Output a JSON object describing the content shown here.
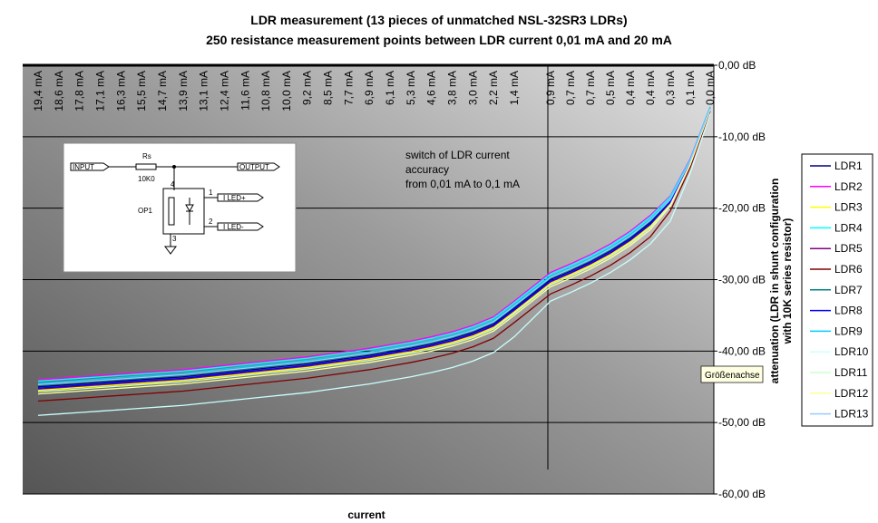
{
  "chart_data": {
    "type": "line",
    "title": "LDR measurement (13 pieces of unmatched NSL-32SR3 LDRs)",
    "subtitle": "250 resistance measurement points between LDR current 0,01 mA and 20 mA",
    "xlabel": "current",
    "ylabel": [
      "attenuation (LDR in shunt configuration",
      "with 10K series resistor)"
    ],
    "annotation": [
      "switch of LDR current",
      "accuracy",
      "from 0,01 mA to 0,1 mA"
    ],
    "tooltip": "Größenachse",
    "inset_labels": {
      "input": "INPUT",
      "rs": "Rs",
      "r_value": "10K0",
      "output": "OUTPUT",
      "pin4": "4",
      "pin1": "1",
      "led_plus": "I LED+",
      "part": "OP1",
      "pin2": "2",
      "led_minus": "I LED-",
      "pin3": "3"
    },
    "categories": [
      "19,4 mA",
      "18,6 mA",
      "17,8 mA",
      "17,1 mA",
      "16,3 mA",
      "15,5 mA",
      "14,7 mA",
      "13,9 mA",
      "13,1 mA",
      "12,4 mA",
      "11,6 mA",
      "10,8 mA",
      "10,0 mA",
      "9,2 mA",
      "8,5 mA",
      "7,7 mA",
      "6,9 mA",
      "6,1 mA",
      "5,3 mA",
      "4,6 mA",
      "3,8 mA",
      "3,0 mA",
      "2,2 mA",
      "1,4 mA",
      "0,9 mA",
      "0,7 mA",
      "0,7 mA",
      "0,5 mA",
      "0,4 mA",
      "0,4 mA",
      "0,3 mA",
      "0,1 mA",
      "0,0 mA"
    ],
    "ylim": [
      -60,
      0
    ],
    "yticks": [
      {
        "value": 0,
        "label": "0,00 dB"
      },
      {
        "value": -10,
        "label": "-10,00 dB"
      },
      {
        "value": -20,
        "label": "-20,00 dB"
      },
      {
        "value": -30,
        "label": "-30,00 dB"
      },
      {
        "value": -40,
        "label": "-40,00 dB"
      },
      {
        "value": -50,
        "label": "-50,00 dB"
      },
      {
        "value": -60,
        "label": "-60,00 dB"
      }
    ],
    "y_axis_side": "right",
    "grid": true,
    "legend": "right",
    "series": [
      {
        "name": "LDR1",
        "color": "#000080",
        "values": [
          -45.0,
          -44.8,
          -44.6,
          -44.4,
          -44.2,
          -44.0,
          -43.8,
          -43.6,
          -43.3,
          -43.0,
          -42.7,
          -42.4,
          -42.1,
          -41.8,
          -41.4,
          -41.0,
          -40.6,
          -40.1,
          -39.6,
          -39.0,
          -38.3,
          -37.4,
          -36.2,
          -34.0,
          -30.0,
          -28.8,
          -27.5,
          -26.0,
          -24.2,
          -22.0,
          -19.0,
          -13.5,
          -6.0
        ]
      },
      {
        "name": "LDR2",
        "color": "#ff00ff",
        "values": [
          -44.0,
          -43.8,
          -43.6,
          -43.4,
          -43.2,
          -43.0,
          -42.8,
          -42.6,
          -42.3,
          -42.0,
          -41.7,
          -41.4,
          -41.1,
          -40.8,
          -40.4,
          -40.0,
          -39.6,
          -39.1,
          -38.6,
          -38.0,
          -37.3,
          -36.4,
          -35.2,
          -33.0,
          -29.0,
          -27.8,
          -26.5,
          -25.0,
          -23.2,
          -21.0,
          -18.3,
          -13.1,
          -5.8
        ]
      },
      {
        "name": "LDR3",
        "color": "#ffff00",
        "values": [
          -45.5,
          -45.3,
          -45.1,
          -44.9,
          -44.7,
          -44.5,
          -44.3,
          -44.1,
          -43.8,
          -43.5,
          -43.2,
          -42.9,
          -42.6,
          -42.3,
          -41.9,
          -41.5,
          -41.1,
          -40.6,
          -40.1,
          -39.5,
          -38.8,
          -37.9,
          -36.7,
          -34.5,
          -30.5,
          -29.3,
          -28.0,
          -26.5,
          -24.7,
          -22.5,
          -19.4,
          -13.7,
          -6.1
        ]
      },
      {
        "name": "LDR4",
        "color": "#00ffff",
        "values": [
          -44.2,
          -44.0,
          -43.8,
          -43.6,
          -43.4,
          -43.2,
          -43.0,
          -42.8,
          -42.5,
          -42.2,
          -41.9,
          -41.6,
          -41.3,
          -41.0,
          -40.6,
          -40.2,
          -39.8,
          -39.3,
          -38.8,
          -38.2,
          -37.5,
          -36.6,
          -35.4,
          -33.2,
          -29.2,
          -28.0,
          -26.7,
          -25.2,
          -23.4,
          -21.2,
          -18.4,
          -13.2,
          -5.8
        ]
      },
      {
        "name": "LDR5",
        "color": "#800080",
        "values": [
          -45.3,
          -45.1,
          -44.9,
          -44.7,
          -44.5,
          -44.3,
          -44.1,
          -43.9,
          -43.6,
          -43.3,
          -43.0,
          -42.7,
          -42.4,
          -42.1,
          -41.7,
          -41.3,
          -40.9,
          -40.4,
          -39.9,
          -39.3,
          -38.6,
          -37.7,
          -36.5,
          -34.3,
          -30.3,
          -29.1,
          -27.8,
          -26.3,
          -24.5,
          -22.3,
          -19.2,
          -13.6,
          -6.1
        ]
      },
      {
        "name": "LDR6",
        "color": "#800000",
        "values": [
          -47.0,
          -46.8,
          -46.6,
          -46.4,
          -46.2,
          -46.0,
          -45.8,
          -45.6,
          -45.3,
          -45.0,
          -44.7,
          -44.4,
          -44.1,
          -43.8,
          -43.4,
          -43.0,
          -42.6,
          -42.1,
          -41.6,
          -41.0,
          -40.3,
          -39.4,
          -38.2,
          -36.0,
          -32.0,
          -30.8,
          -29.5,
          -28.0,
          -26.2,
          -24.0,
          -20.4,
          -14.3,
          -6.4
        ]
      },
      {
        "name": "LDR7",
        "color": "#008080",
        "values": [
          -44.8,
          -44.6,
          -44.4,
          -44.2,
          -44.0,
          -43.8,
          -43.6,
          -43.4,
          -43.1,
          -42.8,
          -42.5,
          -42.2,
          -41.9,
          -41.6,
          -41.2,
          -40.8,
          -40.4,
          -39.9,
          -39.4,
          -38.8,
          -38.1,
          -37.2,
          -36.0,
          -33.8,
          -29.8,
          -28.6,
          -27.3,
          -25.8,
          -24.0,
          -21.8,
          -18.9,
          -13.4,
          -6.0
        ]
      },
      {
        "name": "LDR8",
        "color": "#0000ff",
        "values": [
          -45.2,
          -45.0,
          -44.8,
          -44.6,
          -44.4,
          -44.2,
          -44.0,
          -43.8,
          -43.5,
          -43.2,
          -42.9,
          -42.6,
          -42.3,
          -42.0,
          -41.6,
          -41.2,
          -40.8,
          -40.3,
          -39.8,
          -39.2,
          -38.5,
          -37.6,
          -36.4,
          -34.2,
          -30.2,
          -29.0,
          -27.7,
          -26.2,
          -24.4,
          -22.2,
          -19.1,
          -13.6,
          -6.0
        ]
      },
      {
        "name": "LDR9",
        "color": "#00ccff",
        "values": [
          -44.5,
          -44.3,
          -44.1,
          -43.9,
          -43.7,
          -43.5,
          -43.3,
          -43.1,
          -42.8,
          -42.5,
          -42.2,
          -41.9,
          -41.6,
          -41.3,
          -40.9,
          -40.5,
          -40.1,
          -39.6,
          -39.1,
          -38.5,
          -37.8,
          -36.9,
          -35.7,
          -33.5,
          -29.5,
          -28.3,
          -27.0,
          -25.5,
          -23.7,
          -21.5,
          -18.7,
          -13.3,
          -5.9
        ]
      },
      {
        "name": "LDR10",
        "color": "#ccffff",
        "values": [
          -49.0,
          -48.8,
          -48.6,
          -48.4,
          -48.2,
          -48.0,
          -47.8,
          -47.6,
          -47.3,
          -47.0,
          -46.7,
          -46.4,
          -46.1,
          -45.8,
          -45.4,
          -45.0,
          -44.6,
          -44.1,
          -43.6,
          -43.0,
          -42.3,
          -41.4,
          -40.2,
          -38.0,
          -33.0,
          -31.8,
          -30.5,
          -29.0,
          -27.2,
          -25.0,
          -21.8,
          -15.1,
          -6.8
        ]
      },
      {
        "name": "LDR11",
        "color": "#ccffcc",
        "values": [
          -45.7,
          -45.5,
          -45.3,
          -45.1,
          -44.9,
          -44.7,
          -44.5,
          -44.3,
          -44.0,
          -43.7,
          -43.4,
          -43.1,
          -42.8,
          -42.5,
          -42.1,
          -41.7,
          -41.3,
          -40.8,
          -40.3,
          -39.7,
          -39.0,
          -38.1,
          -36.9,
          -34.7,
          -30.7,
          -29.5,
          -28.2,
          -26.7,
          -24.9,
          -22.7,
          -19.5,
          -13.8,
          -6.1
        ]
      },
      {
        "name": "LDR12",
        "color": "#ffff99",
        "values": [
          -46.0,
          -45.8,
          -45.6,
          -45.4,
          -45.2,
          -45.0,
          -44.8,
          -44.6,
          -44.3,
          -44.0,
          -43.7,
          -43.4,
          -43.1,
          -42.8,
          -42.4,
          -42.0,
          -41.6,
          -41.1,
          -40.6,
          -40.0,
          -39.3,
          -38.4,
          -37.2,
          -35.0,
          -31.0,
          -29.8,
          -28.5,
          -27.0,
          -25.2,
          -23.0,
          -19.7,
          -13.9,
          -6.2
        ]
      },
      {
        "name": "LDR13",
        "color": "#99ccff",
        "values": [
          -44.7,
          -44.5,
          -44.3,
          -44.1,
          -43.9,
          -43.7,
          -43.5,
          -43.3,
          -43.0,
          -42.7,
          -42.4,
          -42.1,
          -41.8,
          -41.5,
          -41.1,
          -40.7,
          -40.3,
          -39.8,
          -39.3,
          -38.7,
          -38.0,
          -37.1,
          -35.9,
          -33.7,
          -29.7,
          -28.5,
          -27.2,
          -25.7,
          -23.9,
          -21.7,
          -18.8,
          -13.4,
          -6.0
        ]
      }
    ]
  }
}
